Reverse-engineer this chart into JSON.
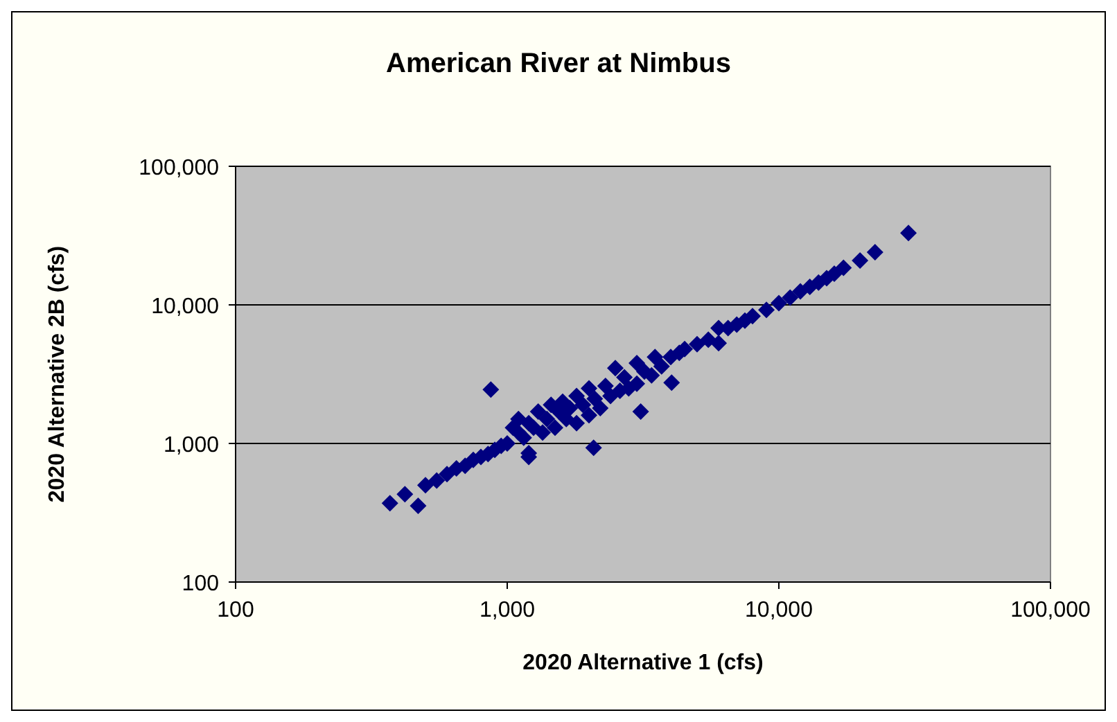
{
  "chart_data": {
    "type": "scatter",
    "title": "American River at Nimbus",
    "xlabel": "2020 Alternative 1 (cfs)",
    "ylabel": "2020 Alternative 2B (cfs)",
    "log": "xy",
    "grid": "y",
    "marker": "diamond",
    "xlim": [
      100,
      100000
    ],
    "ylim": [
      100,
      100000
    ],
    "xticks": [
      {
        "value": 100,
        "label": "100"
      },
      {
        "value": 1000,
        "label": "1,000"
      },
      {
        "value": 10000,
        "label": "10,000"
      },
      {
        "value": 100000,
        "label": "100,000"
      }
    ],
    "yticks": [
      {
        "value": 100,
        "label": "100"
      },
      {
        "value": 1000,
        "label": "1,000"
      },
      {
        "value": 10000,
        "label": "10,000"
      },
      {
        "value": 100000,
        "label": "100,000"
      }
    ],
    "series": [
      {
        "color": "#000080",
        "x": [
          370,
          420,
          470,
          500,
          550,
          600,
          650,
          700,
          750,
          800,
          850,
          900,
          950,
          1000,
          1050,
          1100,
          1100,
          1150,
          1200,
          1200,
          1250,
          1300,
          1350,
          1400,
          1450,
          1500,
          1550,
          1600,
          1650,
          1700,
          1800,
          1800,
          1900,
          2000,
          2000,
          2100,
          2200,
          2300,
          2400,
          2500,
          2600,
          2700,
          2800,
          3000,
          3000,
          3200,
          3400,
          3500,
          3700,
          4000,
          4300,
          4500,
          5000,
          5500,
          6000,
          6000,
          6500,
          7000,
          7500,
          8000,
          9000,
          10000,
          11000,
          12000,
          13000,
          14000,
          15000,
          16000,
          17300,
          870,
          2080,
          3100,
          4030,
          19900,
          22600,
          30000,
          1200
        ],
        "values": [
          370,
          430,
          355,
          500,
          540,
          600,
          660,
          690,
          760,
          800,
          840,
          900,
          960,
          1000,
          1300,
          1200,
          1500,
          1100,
          800,
          1400,
          1300,
          1700,
          1200,
          1500,
          1900,
          1300,
          1700,
          2000,
          1500,
          1800,
          2200,
          1400,
          1900,
          2500,
          1600,
          2100,
          1800,
          2600,
          2200,
          3500,
          2400,
          3000,
          2500,
          3800,
          2700,
          3300,
          3100,
          4200,
          3600,
          4200,
          4500,
          4800,
          5200,
          5600,
          6800,
          5300,
          6800,
          7200,
          7700,
          8300,
          9200,
          10300,
          11300,
          12500,
          13500,
          14500,
          15600,
          16800,
          18500,
          2450,
          930,
          1700,
          2750,
          20900,
          24000,
          33000,
          850
        ]
      }
    ]
  }
}
